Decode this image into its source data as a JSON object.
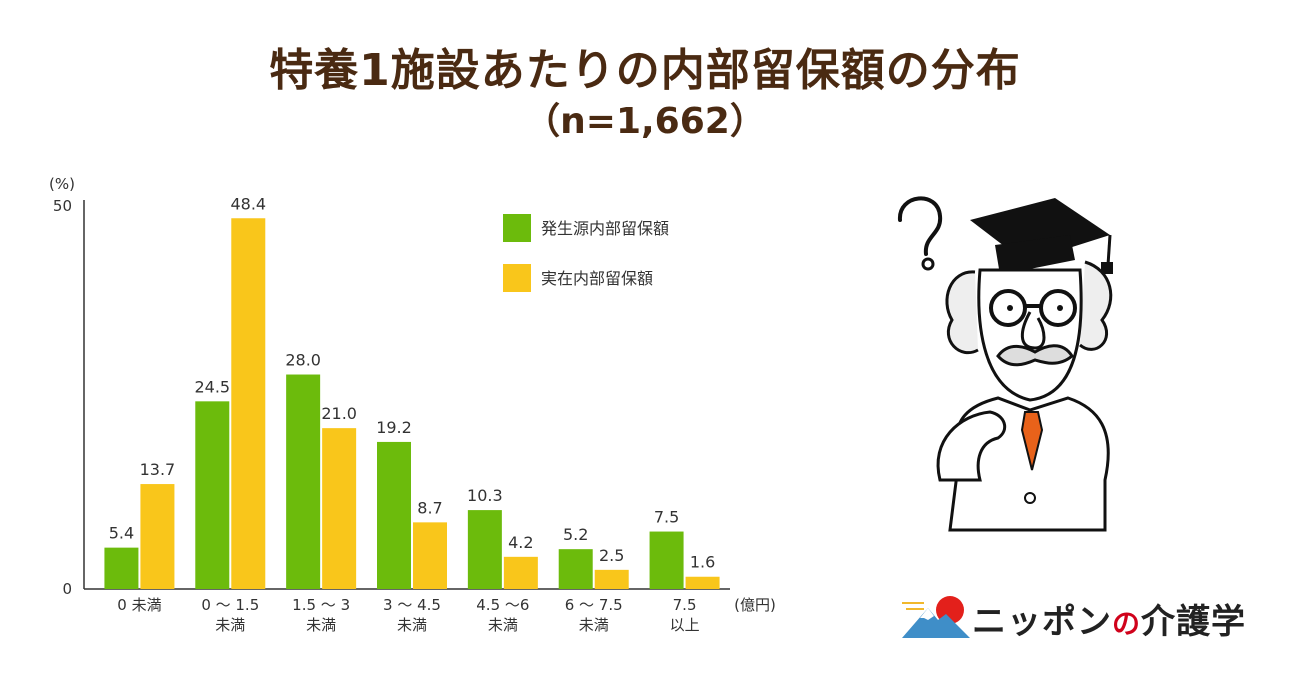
{
  "title": "特養1施設あたりの内部留保額の分布",
  "subtitle": "（n=1,662）",
  "chart_data": {
    "type": "bar",
    "ylabel": "(%)",
    "xunit": "(億円)",
    "ylim": [
      0,
      50
    ],
    "yticks": [
      "0",
      "50"
    ],
    "categories": [
      [
        "0 未満"
      ],
      [
        "0 ～ 1.5",
        "未満"
      ],
      [
        "1.5 ～ 3",
        "未満"
      ],
      [
        "3 ～ 4.5",
        "未満"
      ],
      [
        "4.5 ～6",
        "未満"
      ],
      [
        "6 ～ 7.5",
        "未満"
      ],
      [
        "7.5",
        "以上"
      ]
    ],
    "series": [
      {
        "name": "発生源内部留保額",
        "color": "#6cbb0c",
        "values": [
          5.4,
          24.5,
          28.0,
          19.2,
          10.3,
          5.2,
          7.5
        ]
      },
      {
        "name": "実在内部留保額",
        "color": "#f9c61b",
        "values": [
          13.7,
          48.4,
          21.0,
          8.7,
          4.2,
          2.5,
          1.6
        ]
      }
    ],
    "legend_position": "top-right",
    "grid": false
  },
  "logo": {
    "text_a": "ニッポン",
    "text_no": "の",
    "text_b": "介護学"
  }
}
